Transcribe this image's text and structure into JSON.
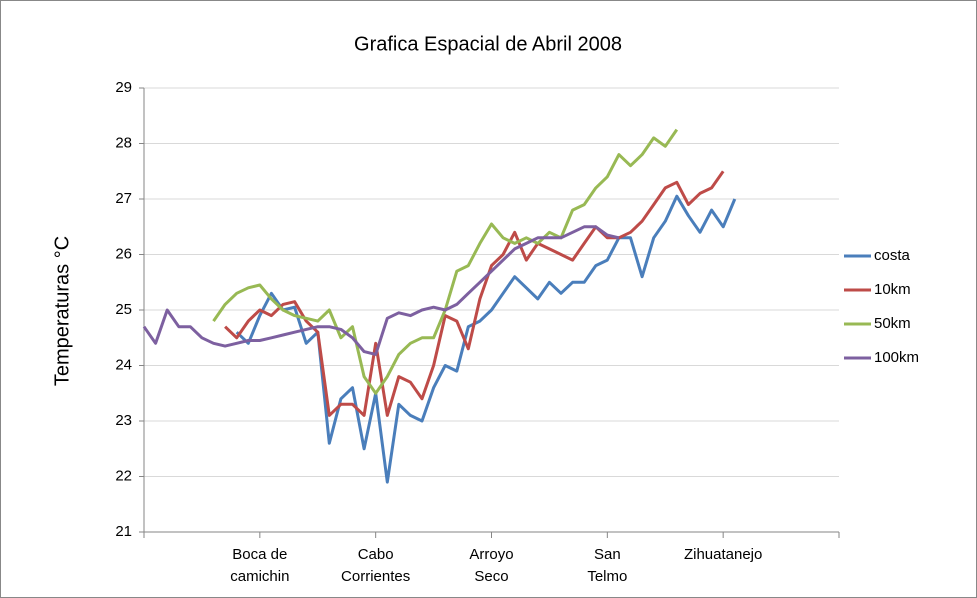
{
  "chart_data": {
    "type": "line",
    "title": "Grafica Espacial de Abril  2008",
    "y_label": "Temperaturas °C",
    "x": [
      0,
      0.1,
      0.2,
      0.3,
      0.4,
      0.5,
      0.6,
      0.7,
      0.8,
      0.9,
      1.0,
      1.1,
      1.2,
      1.3,
      1.4,
      1.5,
      1.6,
      1.7,
      1.8,
      1.9,
      2.0,
      2.1,
      2.2,
      2.3,
      2.4,
      2.5,
      2.6,
      2.7,
      2.8,
      2.9,
      3.0,
      3.1,
      3.2,
      3.3,
      3.4,
      3.5,
      3.6,
      3.7,
      3.8,
      3.9,
      4.0,
      4.1,
      4.2,
      4.3,
      4.4,
      4.5,
      4.6,
      4.7,
      4.8,
      4.9,
      5.0,
      5.1
    ],
    "series": [
      {
        "name": "costa",
        "color": "#4a7ebb",
        "values": [
          null,
          null,
          null,
          null,
          null,
          null,
          null,
          null,
          24.6,
          24.4,
          24.9,
          25.3,
          25.0,
          25.05,
          24.4,
          24.6,
          22.6,
          23.4,
          23.6,
          22.5,
          23.5,
          21.9,
          23.3,
          23.1,
          23.0,
          23.6,
          24.0,
          23.9,
          24.7,
          24.8,
          25.0,
          25.3,
          25.6,
          25.4,
          25.2,
          25.5,
          25.3,
          25.5,
          25.5,
          25.8,
          25.9,
          26.3,
          26.3,
          25.6,
          26.3,
          26.6,
          27.05,
          26.7,
          26.4,
          26.8,
          26.5,
          27.0
        ]
      },
      {
        "name": "10km",
        "color": "#be4b48",
        "values": [
          null,
          null,
          null,
          null,
          null,
          null,
          null,
          24.7,
          24.5,
          24.8,
          25.0,
          24.9,
          25.1,
          25.15,
          24.8,
          24.6,
          23.1,
          23.3,
          23.3,
          23.1,
          24.4,
          23.1,
          23.8,
          23.7,
          23.4,
          24.0,
          24.9,
          24.8,
          24.3,
          25.2,
          25.8,
          26.0,
          26.4,
          25.9,
          26.2,
          26.1,
          26.0,
          25.9,
          26.2,
          26.5,
          26.3,
          26.3,
          26.4,
          26.6,
          26.9,
          27.2,
          27.3,
          26.9,
          27.1,
          27.2,
          27.5,
          null
        ]
      },
      {
        "name": "50km",
        "color": "#98b954",
        "values": [
          null,
          null,
          null,
          null,
          null,
          null,
          24.8,
          25.1,
          25.3,
          25.4,
          25.45,
          25.2,
          25.0,
          24.9,
          24.85,
          24.8,
          25.0,
          24.5,
          24.7,
          23.8,
          23.5,
          23.8,
          24.2,
          24.4,
          24.5,
          24.5,
          25.0,
          25.7,
          25.8,
          26.2,
          26.55,
          26.3,
          26.2,
          26.3,
          26.2,
          26.4,
          26.3,
          26.8,
          26.9,
          27.2,
          27.4,
          27.8,
          27.6,
          27.8,
          28.1,
          27.95,
          28.25,
          null,
          null,
          null,
          null,
          null
        ]
      },
      {
        "name": "100km",
        "color": "#7d60a0",
        "values": [
          24.7,
          24.4,
          25.0,
          24.7,
          24.7,
          24.5,
          24.4,
          24.35,
          24.4,
          24.45,
          24.45,
          24.5,
          24.55,
          24.6,
          24.65,
          24.7,
          24.7,
          24.65,
          24.5,
          24.25,
          24.2,
          24.85,
          24.95,
          24.9,
          25.0,
          25.05,
          25.0,
          25.1,
          25.3,
          25.5,
          25.7,
          25.9,
          26.1,
          26.2,
          26.3,
          26.3,
          26.3,
          26.4,
          26.5,
          26.5,
          26.35,
          26.3,
          null,
          null,
          null,
          null,
          null,
          null,
          null,
          null,
          null,
          null
        ]
      }
    ],
    "xlim": [
      0,
      6
    ],
    "xticks": [
      {
        "value": 1,
        "label": "Boca de\ncamichin"
      },
      {
        "value": 2,
        "label": "Cabo\nCorrientes"
      },
      {
        "value": 3,
        "label": "Arroyo\nSeco"
      },
      {
        "value": 4,
        "label": "San\nTelmo"
      },
      {
        "value": 5,
        "label": "Zihuatanejo"
      }
    ],
    "ylim": [
      21,
      29
    ],
    "yticks": [
      21,
      22,
      23,
      24,
      25,
      26,
      27,
      28,
      29
    ],
    "grid": true,
    "legend": "right"
  }
}
